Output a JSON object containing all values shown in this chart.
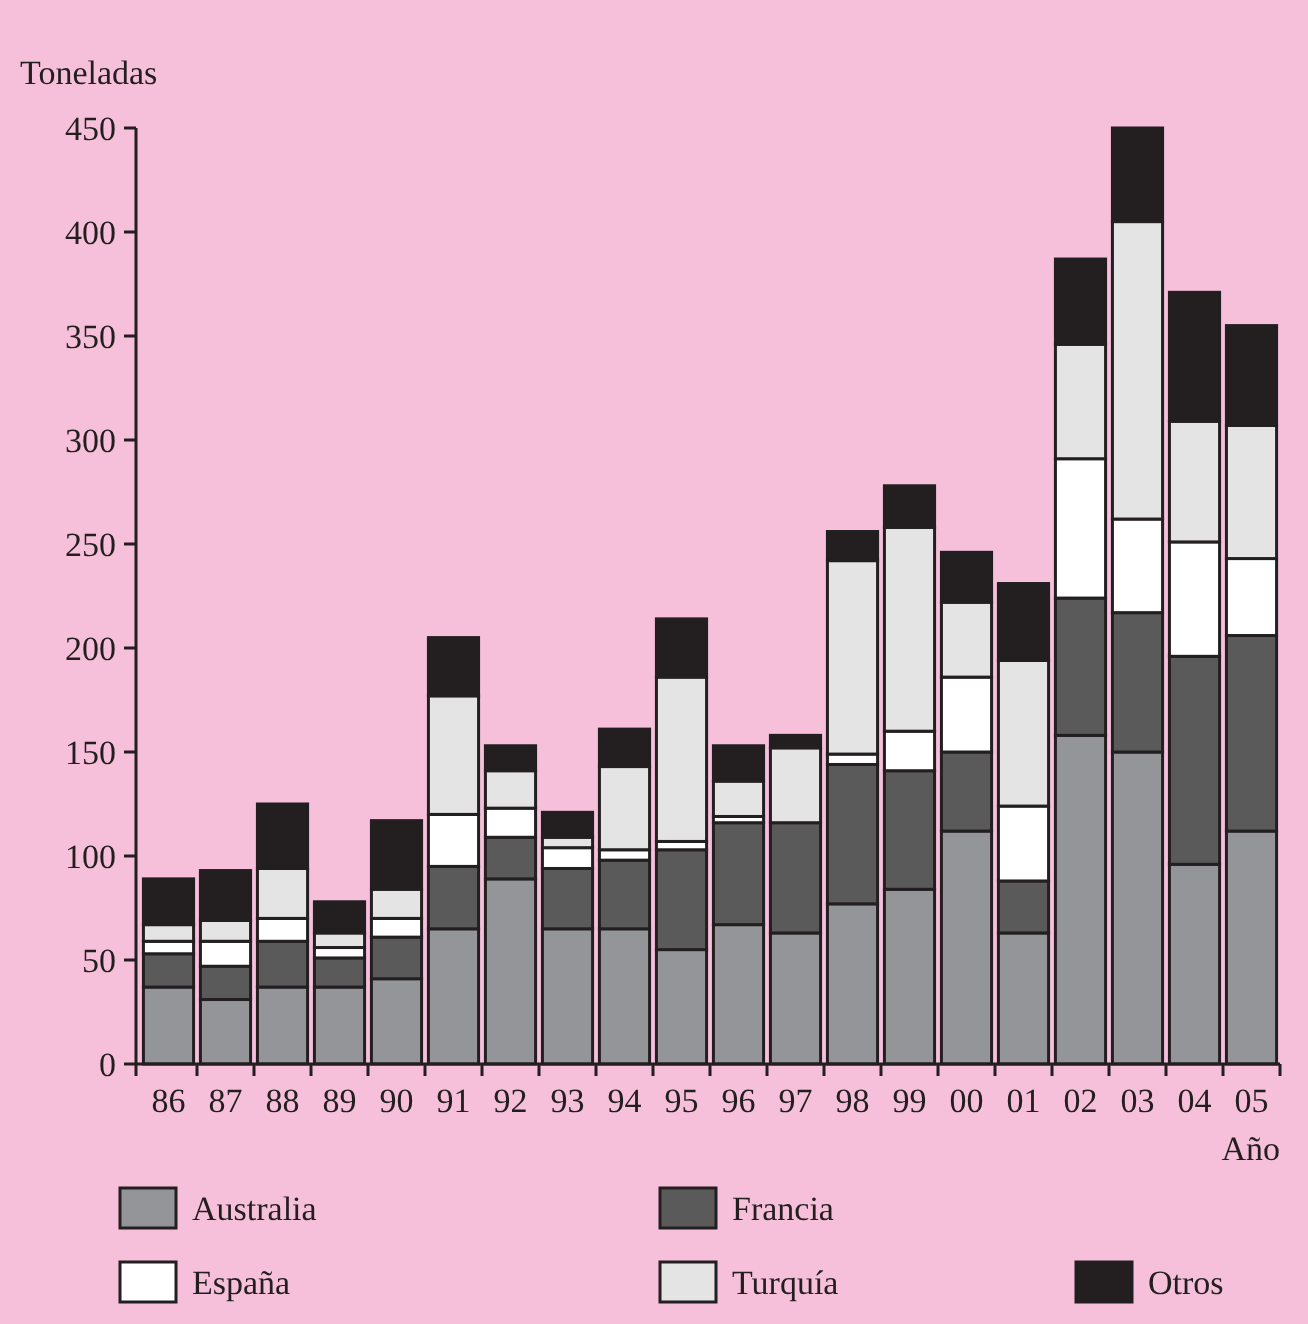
{
  "chart_data": {
    "type": "bar",
    "stacked": true,
    "ylabel": "Toneladas",
    "xlabel": "Año",
    "categories": [
      "86",
      "87",
      "88",
      "89",
      "90",
      "91",
      "92",
      "93",
      "94",
      "95",
      "96",
      "97",
      "98",
      "99",
      "00",
      "01",
      "02",
      "03",
      "04",
      "05"
    ],
    "series": [
      {
        "name": "Australia",
        "color": "#939598",
        "values": [
          37,
          31,
          37,
          37,
          41,
          65,
          89,
          65,
          65,
          55,
          67,
          63,
          77,
          84,
          112,
          63,
          158,
          150,
          96,
          112
        ]
      },
      {
        "name": "Francia",
        "color": "#5a5a5a",
        "values": [
          16,
          16,
          22,
          14,
          20,
          30,
          20,
          29,
          33,
          48,
          49,
          53,
          67,
          57,
          38,
          25,
          66,
          67,
          100,
          94
        ]
      },
      {
        "name": "España",
        "color": "#ffffff",
        "values": [
          6,
          12,
          11,
          5,
          9,
          25,
          14,
          10,
          5,
          4,
          3,
          0,
          5,
          19,
          36,
          36,
          67,
          45,
          55,
          37
        ]
      },
      {
        "name": "Turquía",
        "color": "#e4e4e4",
        "values": [
          8,
          10,
          24,
          7,
          14,
          57,
          18,
          5,
          40,
          79,
          17,
          36,
          93,
          98,
          36,
          70,
          55,
          143,
          58,
          64
        ]
      },
      {
        "name": "Otros",
        "color": "#231f20",
        "values": [
          22,
          24,
          31,
          15,
          33,
          28,
          12,
          12,
          18,
          28,
          17,
          6,
          14,
          20,
          24,
          37,
          41,
          45,
          62,
          48
        ]
      }
    ],
    "ylim": [
      0,
      450
    ],
    "yticks": [
      0,
      50,
      100,
      150,
      200,
      250,
      300,
      350,
      400,
      450
    ],
    "legend": "bottom"
  }
}
